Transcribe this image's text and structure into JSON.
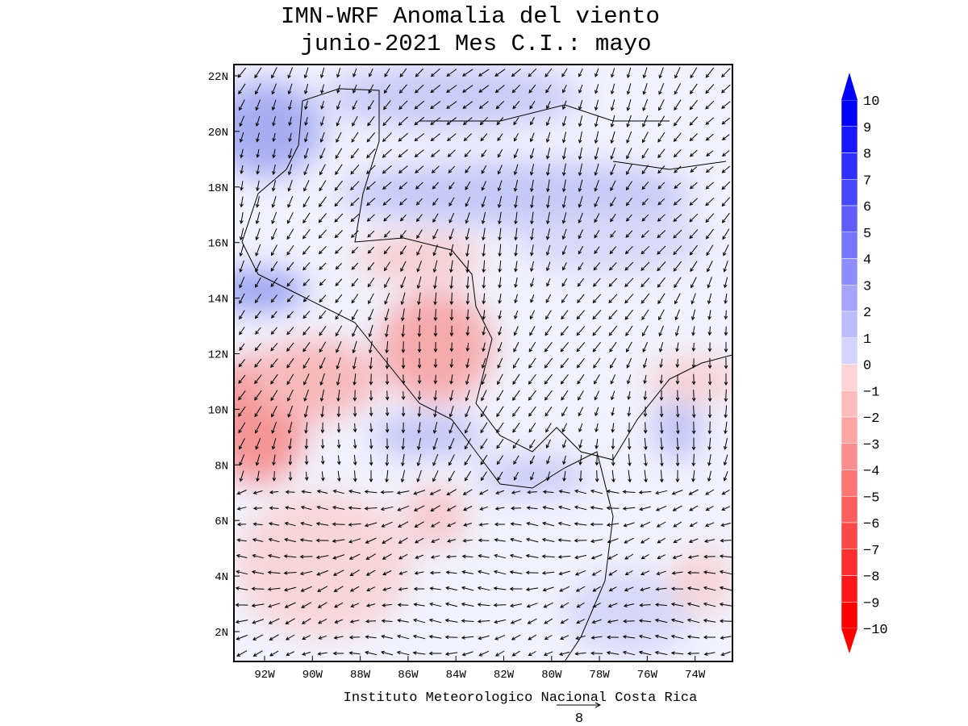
{
  "title": [
    "IMN-WRF Anomalia del viento",
    "junio-2021 Mes C.I.: mayo"
  ],
  "lat_labels": [
    "22N",
    "20N",
    "18N",
    "16N",
    "14N",
    "12N",
    "10N",
    "8N",
    "6N",
    "4N",
    "2N"
  ],
  "lon_labels": [
    "92W",
    "90W",
    "88W",
    "86W",
    "84W",
    "82W",
    "80W",
    "78W",
    "76W",
    "74W"
  ],
  "colorbar": {
    "labels": [
      "10",
      "9",
      "8",
      "7",
      "6",
      "5",
      "4",
      "3",
      "2",
      "1",
      "0",
      "−1",
      "−2",
      "−3",
      "−4",
      "−5",
      "−6",
      "−7",
      "−8",
      "−9",
      "−10"
    ]
  },
  "footer": "Instituto Meteorologico Nacional Costa Rica",
  "reference_vector": "8"
}
